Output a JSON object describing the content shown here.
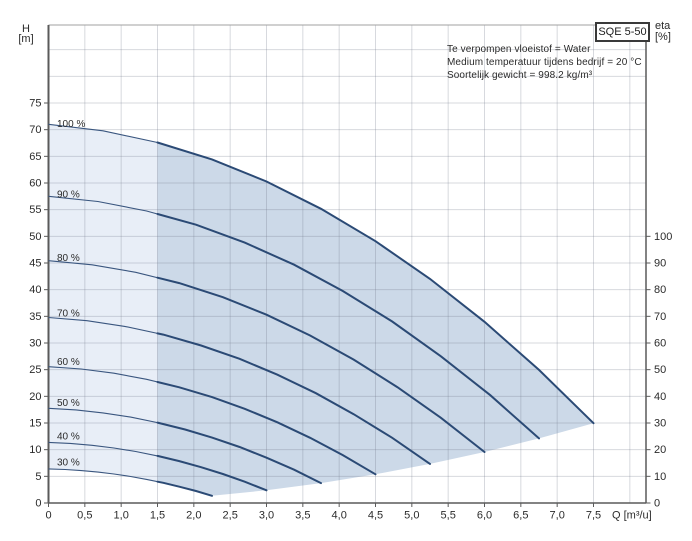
{
  "title_box": {
    "label": "SQE 5-50"
  },
  "axis_corner_labels": {
    "left_line1": "H",
    "left_line2": "[m]",
    "right_line1": "eta",
    "right_line2": "[%]"
  },
  "info_lines": [
    "Te verpompen vloeistof = Water",
    "Medium temperatuur tijdens bedrijf = 20 °C",
    "Soortelijk gewicht = 998.2 kg/m³"
  ],
  "chart_data": {
    "type": "line",
    "title": "SQE 5-50",
    "xlabel": "Q [m³/u]",
    "ylabel_left": "H [m]",
    "ylabel_right": "eta [%]",
    "x_tick_values": [
      0,
      0.5,
      1.0,
      1.5,
      2.0,
      2.5,
      3.0,
      3.5,
      4.0,
      4.5,
      5.0,
      5.5,
      6.0,
      6.5,
      7.0,
      7.5
    ],
    "x_tick_labels": [
      "0",
      "0,5",
      "1,0",
      "1,5",
      "2,0",
      "2,5",
      "3,0",
      "3,5",
      "4,0",
      "4,5",
      "5,0",
      "5,5",
      "6,0",
      "6,5",
      "7,0",
      "7,5"
    ],
    "y_left_ticks": [
      0,
      5,
      10,
      15,
      20,
      25,
      30,
      35,
      40,
      45,
      50,
      55,
      60,
      65,
      70,
      75
    ],
    "y_right_ticks": [
      0,
      10,
      20,
      30,
      40,
      50,
      60,
      70,
      80,
      90,
      100
    ],
    "x_range_drawn": [
      0,
      8.22
    ],
    "y_range_drawn": [
      0,
      89.6
    ],
    "grid": {
      "x_step": 0.5,
      "y_step": 5,
      "on": true
    },
    "legend_position": "none",
    "speed_split_q": 1.5,
    "series": [
      {
        "name": "100 %",
        "points": [
          [
            0,
            71.0
          ],
          [
            0.75,
            69.78
          ],
          [
            1.5,
            67.59
          ],
          [
            2.25,
            64.43
          ],
          [
            3.0,
            60.29
          ],
          [
            3.75,
            55.17
          ],
          [
            4.5,
            49.08
          ],
          [
            5.25,
            42.01
          ],
          [
            6.0,
            33.97
          ],
          [
            6.75,
            24.95
          ],
          [
            7.5,
            14.96
          ]
        ]
      },
      {
        "name": "90 %",
        "points": [
          [
            0,
            57.51
          ],
          [
            0.68,
            56.53
          ],
          [
            1.35,
            54.75
          ],
          [
            2.03,
            52.19
          ],
          [
            2.7,
            48.83
          ],
          [
            3.38,
            44.69
          ],
          [
            4.05,
            39.75
          ],
          [
            4.73,
            34.03
          ],
          [
            5.4,
            27.51
          ],
          [
            6.08,
            20.21
          ],
          [
            6.75,
            12.12
          ]
        ]
      },
      {
        "name": "80 %",
        "points": [
          [
            0,
            45.44
          ],
          [
            0.6,
            44.66
          ],
          [
            1.2,
            43.26
          ],
          [
            1.8,
            41.23
          ],
          [
            2.4,
            38.58
          ],
          [
            3.0,
            35.31
          ],
          [
            3.6,
            31.41
          ],
          [
            4.2,
            26.89
          ],
          [
            4.8,
            21.74
          ],
          [
            5.4,
            15.97
          ],
          [
            6.0,
            9.57
          ]
        ]
      },
      {
        "name": "70 %",
        "points": [
          [
            0,
            34.79
          ],
          [
            0.53,
            34.19
          ],
          [
            1.05,
            33.12
          ],
          [
            1.58,
            31.57
          ],
          [
            2.1,
            29.54
          ],
          [
            2.63,
            27.03
          ],
          [
            3.15,
            24.05
          ],
          [
            3.68,
            20.59
          ],
          [
            4.2,
            16.65
          ],
          [
            4.73,
            12.23
          ],
          [
            5.25,
            7.33
          ]
        ]
      },
      {
        "name": "60 %",
        "points": [
          [
            0,
            25.56
          ],
          [
            0.45,
            25.12
          ],
          [
            0.9,
            24.33
          ],
          [
            1.35,
            23.19
          ],
          [
            1.8,
            21.7
          ],
          [
            2.25,
            19.86
          ],
          [
            2.7,
            17.67
          ],
          [
            3.15,
            15.13
          ],
          [
            3.6,
            12.23
          ],
          [
            4.05,
            8.98
          ],
          [
            4.5,
            5.38
          ]
        ]
      },
      {
        "name": "50 %",
        "points": [
          [
            0,
            17.75
          ],
          [
            0.38,
            17.45
          ],
          [
            0.75,
            16.9
          ],
          [
            1.13,
            16.11
          ],
          [
            1.5,
            15.07
          ],
          [
            1.88,
            13.79
          ],
          [
            2.25,
            12.27
          ],
          [
            2.63,
            10.5
          ],
          [
            3.0,
            8.49
          ],
          [
            3.38,
            6.24
          ],
          [
            3.75,
            3.74
          ]
        ]
      },
      {
        "name": "40 %",
        "points": [
          [
            0,
            11.36
          ],
          [
            0.3,
            11.17
          ],
          [
            0.6,
            10.82
          ],
          [
            0.9,
            10.31
          ],
          [
            1.2,
            9.65
          ],
          [
            1.5,
            8.83
          ],
          [
            1.8,
            7.85
          ],
          [
            2.1,
            6.72
          ],
          [
            2.4,
            5.44
          ],
          [
            2.7,
            3.99
          ],
          [
            3.0,
            2.39
          ]
        ]
      },
      {
        "name": "30 %",
        "points": [
          [
            0,
            6.39
          ],
          [
            0.23,
            6.28
          ],
          [
            0.45,
            6.08
          ],
          [
            0.68,
            5.8
          ],
          [
            0.9,
            5.43
          ],
          [
            1.13,
            4.97
          ],
          [
            1.35,
            4.42
          ],
          [
            1.58,
            3.78
          ],
          [
            1.8,
            3.06
          ],
          [
            2.03,
            2.25
          ],
          [
            2.25,
            1.35
          ]
        ]
      }
    ],
    "colors": {
      "curve": "#2b4a75",
      "curve_thin": "#3a567f",
      "fill_light": "#e8eef7",
      "fill_dark": "#ccd9e8",
      "grid": "#6e7887",
      "axis": "#5a5a5a",
      "border_top": "#a0a0a0",
      "text": "#2b2b2b"
    }
  }
}
